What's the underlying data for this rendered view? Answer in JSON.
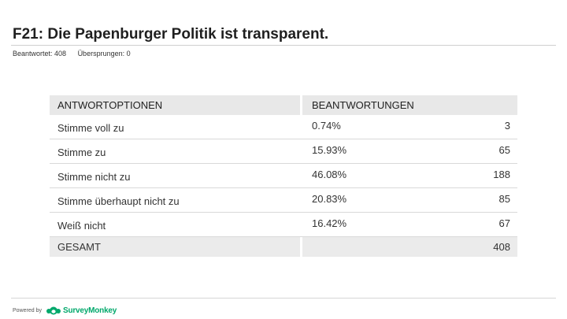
{
  "question": {
    "title": "F21: Die Papenburger Politik ist transparent.",
    "answered": "Beantwortet: 408",
    "skipped": "Übersprungen: 0"
  },
  "table": {
    "header_options": "ANTWORTOPTIONEN",
    "header_responses": "BEANTWORTUNGEN",
    "rows": [
      {
        "label": "Stimme voll zu",
        "percent": "0.74%",
        "count": "3"
      },
      {
        "label": "Stimme zu",
        "percent": "15.93%",
        "count": "65"
      },
      {
        "label": "Stimme nicht zu",
        "percent": "46.08%",
        "count": "188"
      },
      {
        "label": "Stimme überhaupt nicht zu",
        "percent": "20.83%",
        "count": "85"
      },
      {
        "label": "Weiß nicht",
        "percent": "16.42%",
        "count": "67"
      }
    ],
    "total_label": "GESAMT",
    "total_count": "408"
  },
  "footer": {
    "powered_by": "Powered by",
    "brand": "SurveyMonkey",
    "brand_icon": "surveymonkey-logo-icon",
    "brand_color": "#00a86b"
  }
}
